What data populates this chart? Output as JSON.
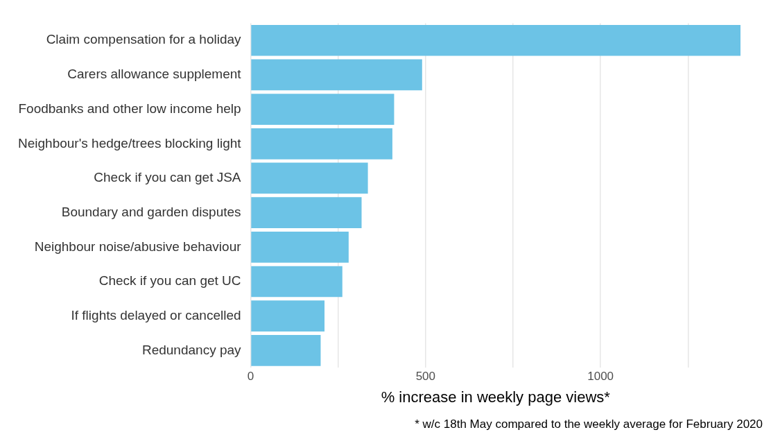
{
  "chart_data": {
    "type": "bar",
    "orientation": "horizontal",
    "xlabel": "% increase in weekly page views*",
    "categories": [
      "Claim compensation for a holiday",
      "Carers allowance supplement",
      "Foodbanks and other low income help",
      "Neighbour's hedge/trees blocking light",
      "Check if you can get JSA",
      "Boundary and garden disputes",
      "Neighbour noise/abusive behaviour",
      "Check if you can get UC",
      "If flights delayed or cancelled",
      "Redundancy pay"
    ],
    "values": [
      1400,
      490,
      410,
      405,
      335,
      317,
      280,
      262,
      211,
      200
    ],
    "color": "#6cc3e6",
    "xlim": [
      0,
      1400
    ],
    "xticks": [
      0,
      {
        "value": 250,
        "label": null
      },
      500,
      {
        "value": 750,
        "label": null
      },
      1000,
      {
        "value": 1250,
        "label": null
      }
    ],
    "grid": "x",
    "legend": false,
    "annotations": [
      "* w/c 18th May compared to the weekly average for February 2020"
    ]
  }
}
